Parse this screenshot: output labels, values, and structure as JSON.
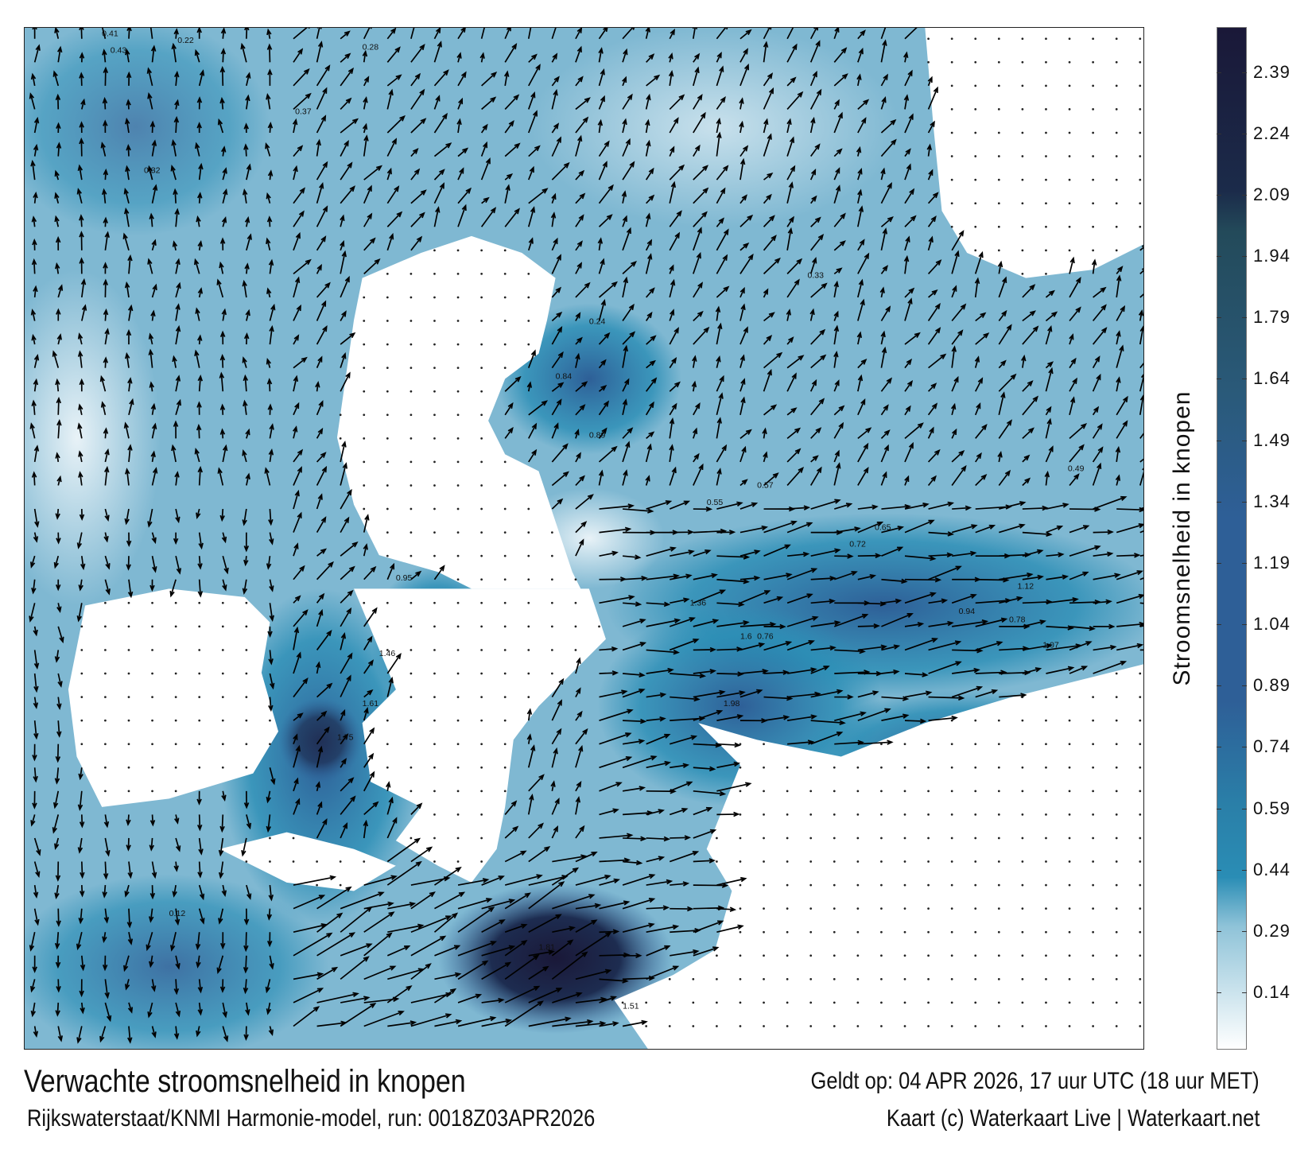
{
  "title": "Verwachte stroomsnelheid in knopen",
  "valid_time": "Geldt op: 04 APR 2026, 17 uur UTC (18 uur MET)",
  "source": "Rijkswaterstaat/KNMI Harmonie-model, run: 0018Z03APR2026",
  "credit": "Kaart (c) Waterkaart Live | Waterkaart.net",
  "colorbar": {
    "title": "Stroomsnelheid in knopen",
    "range": [
      0,
      2.5
    ],
    "ticks": [
      "2.39",
      "2.24",
      "2.09",
      "1.94",
      "1.79",
      "1.64",
      "1.49",
      "1.34",
      "1.19",
      "1.04",
      "0.89",
      "0.74",
      "0.59",
      "0.44",
      "0.29",
      "0.14"
    ],
    "colors": {
      "low": "#ffffff",
      "mid_light": "#8fc3d8",
      "mid": "#2a8db5",
      "high": "#2e5f97",
      "very_high": "#234a5a",
      "max": "#1a1838"
    }
  },
  "map": {
    "land_color": "#ffffff",
    "arrow_color": "#000000",
    "sample_speed_labels": [
      "0.41",
      "0.43",
      "0.22",
      "0.28",
      "0.37",
      "0.32",
      "0.24",
      "0.84",
      "0.89",
      "0.95",
      "1.46",
      "1.61",
      "1.75",
      "1.81",
      "1.51",
      "1.36",
      "1.6",
      "1.98",
      "0.76",
      "0.78",
      "1.07",
      "1.12",
      "0.94",
      "0.72",
      "0.65",
      "0.49",
      "0.55",
      "0.57",
      "0.33",
      "0.12"
    ]
  }
}
